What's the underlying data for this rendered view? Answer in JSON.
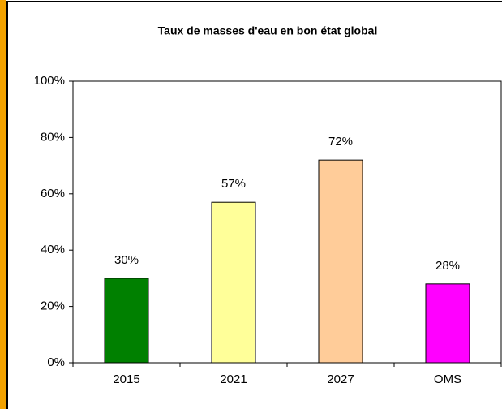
{
  "chart_data": {
    "type": "bar",
    "title": "Taux de masses d'eau en bon état global",
    "categories": [
      "2015",
      "2021",
      "2027",
      "OMS"
    ],
    "values": [
      30,
      57,
      72,
      28
    ],
    "value_labels": [
      "30%",
      "57%",
      "72%",
      "28%"
    ],
    "colors": [
      "#008000",
      "#ffff99",
      "#ffcc99",
      "#ff00ff"
    ],
    "ylim": [
      0,
      100
    ],
    "yticks": [
      {
        "value": 0,
        "label": "0%"
      },
      {
        "value": 20,
        "label": "20%"
      },
      {
        "value": 40,
        "label": "40%"
      },
      {
        "value": 60,
        "label": "60%"
      },
      {
        "value": 80,
        "label": "80%"
      },
      {
        "value": 100,
        "label": "100%"
      }
    ],
    "grid": false
  }
}
